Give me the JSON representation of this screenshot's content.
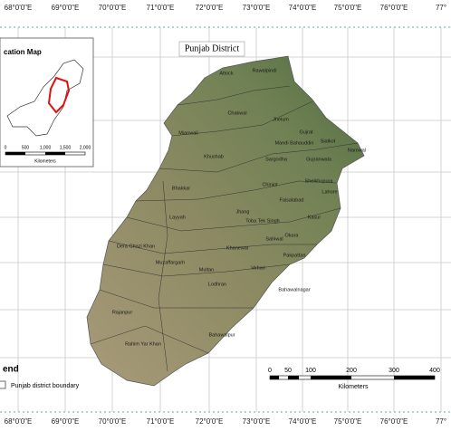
{
  "map": {
    "title": "Punjab District",
    "top_labels": [
      "68°0'0\"E",
      "69°0'0\"E",
      "70°0'0\"E",
      "71°0'0\"E",
      "72°0'0\"E",
      "73°0'0\"E",
      "74°0'0\"E",
      "75°0'0\"E",
      "76°0'0\"E",
      "77°"
    ],
    "bottom_labels": [
      "68°0'0\"E",
      "69°0'0\"E",
      "70°0'0\"E",
      "71°0'0\"E",
      "72°0'0\"E",
      "73°0'0\"E",
      "74°0'0\"E",
      "75°0'0\"E",
      "76°0'0\"E",
      "77°"
    ],
    "inset": {
      "title": "cation Map",
      "scale_labels": [
        "0",
        "500",
        "1,000",
        "1,500",
        "2,000"
      ],
      "unit": "Kilometers"
    },
    "legend": {
      "title": "end",
      "item": "Punjab district boundary"
    },
    "scale_bar": {
      "labels": [
        "0",
        "50",
        "100",
        "200",
        "300",
        "400"
      ],
      "unit": "Kilometers"
    },
    "districts": [
      "Attock",
      "Rawalpindi",
      "Chakwal",
      "Jhelum",
      "Gujrat",
      "Mianwali",
      "Mandi Bahauddin",
      "Sialkot",
      "Narowal",
      "Khushab",
      "Sargodha",
      "Gujranwala",
      "Chiniot",
      "Sheikhupura",
      "Faisalabad",
      "Lahore",
      "Bhakkar",
      "Jhang",
      "Layyah",
      "Toba Tek Singh",
      "Kasur",
      "Okara",
      "Sahiwal",
      "Dera Ghazi Khan",
      "Khanewal",
      "Pakpattan",
      "Muzaffargarh",
      "Multan",
      "Vehari",
      "Lodhran",
      "Bahawalnagar",
      "Rajanpur",
      "Rahim Yar Khan",
      "Bahawalpur"
    ]
  }
}
